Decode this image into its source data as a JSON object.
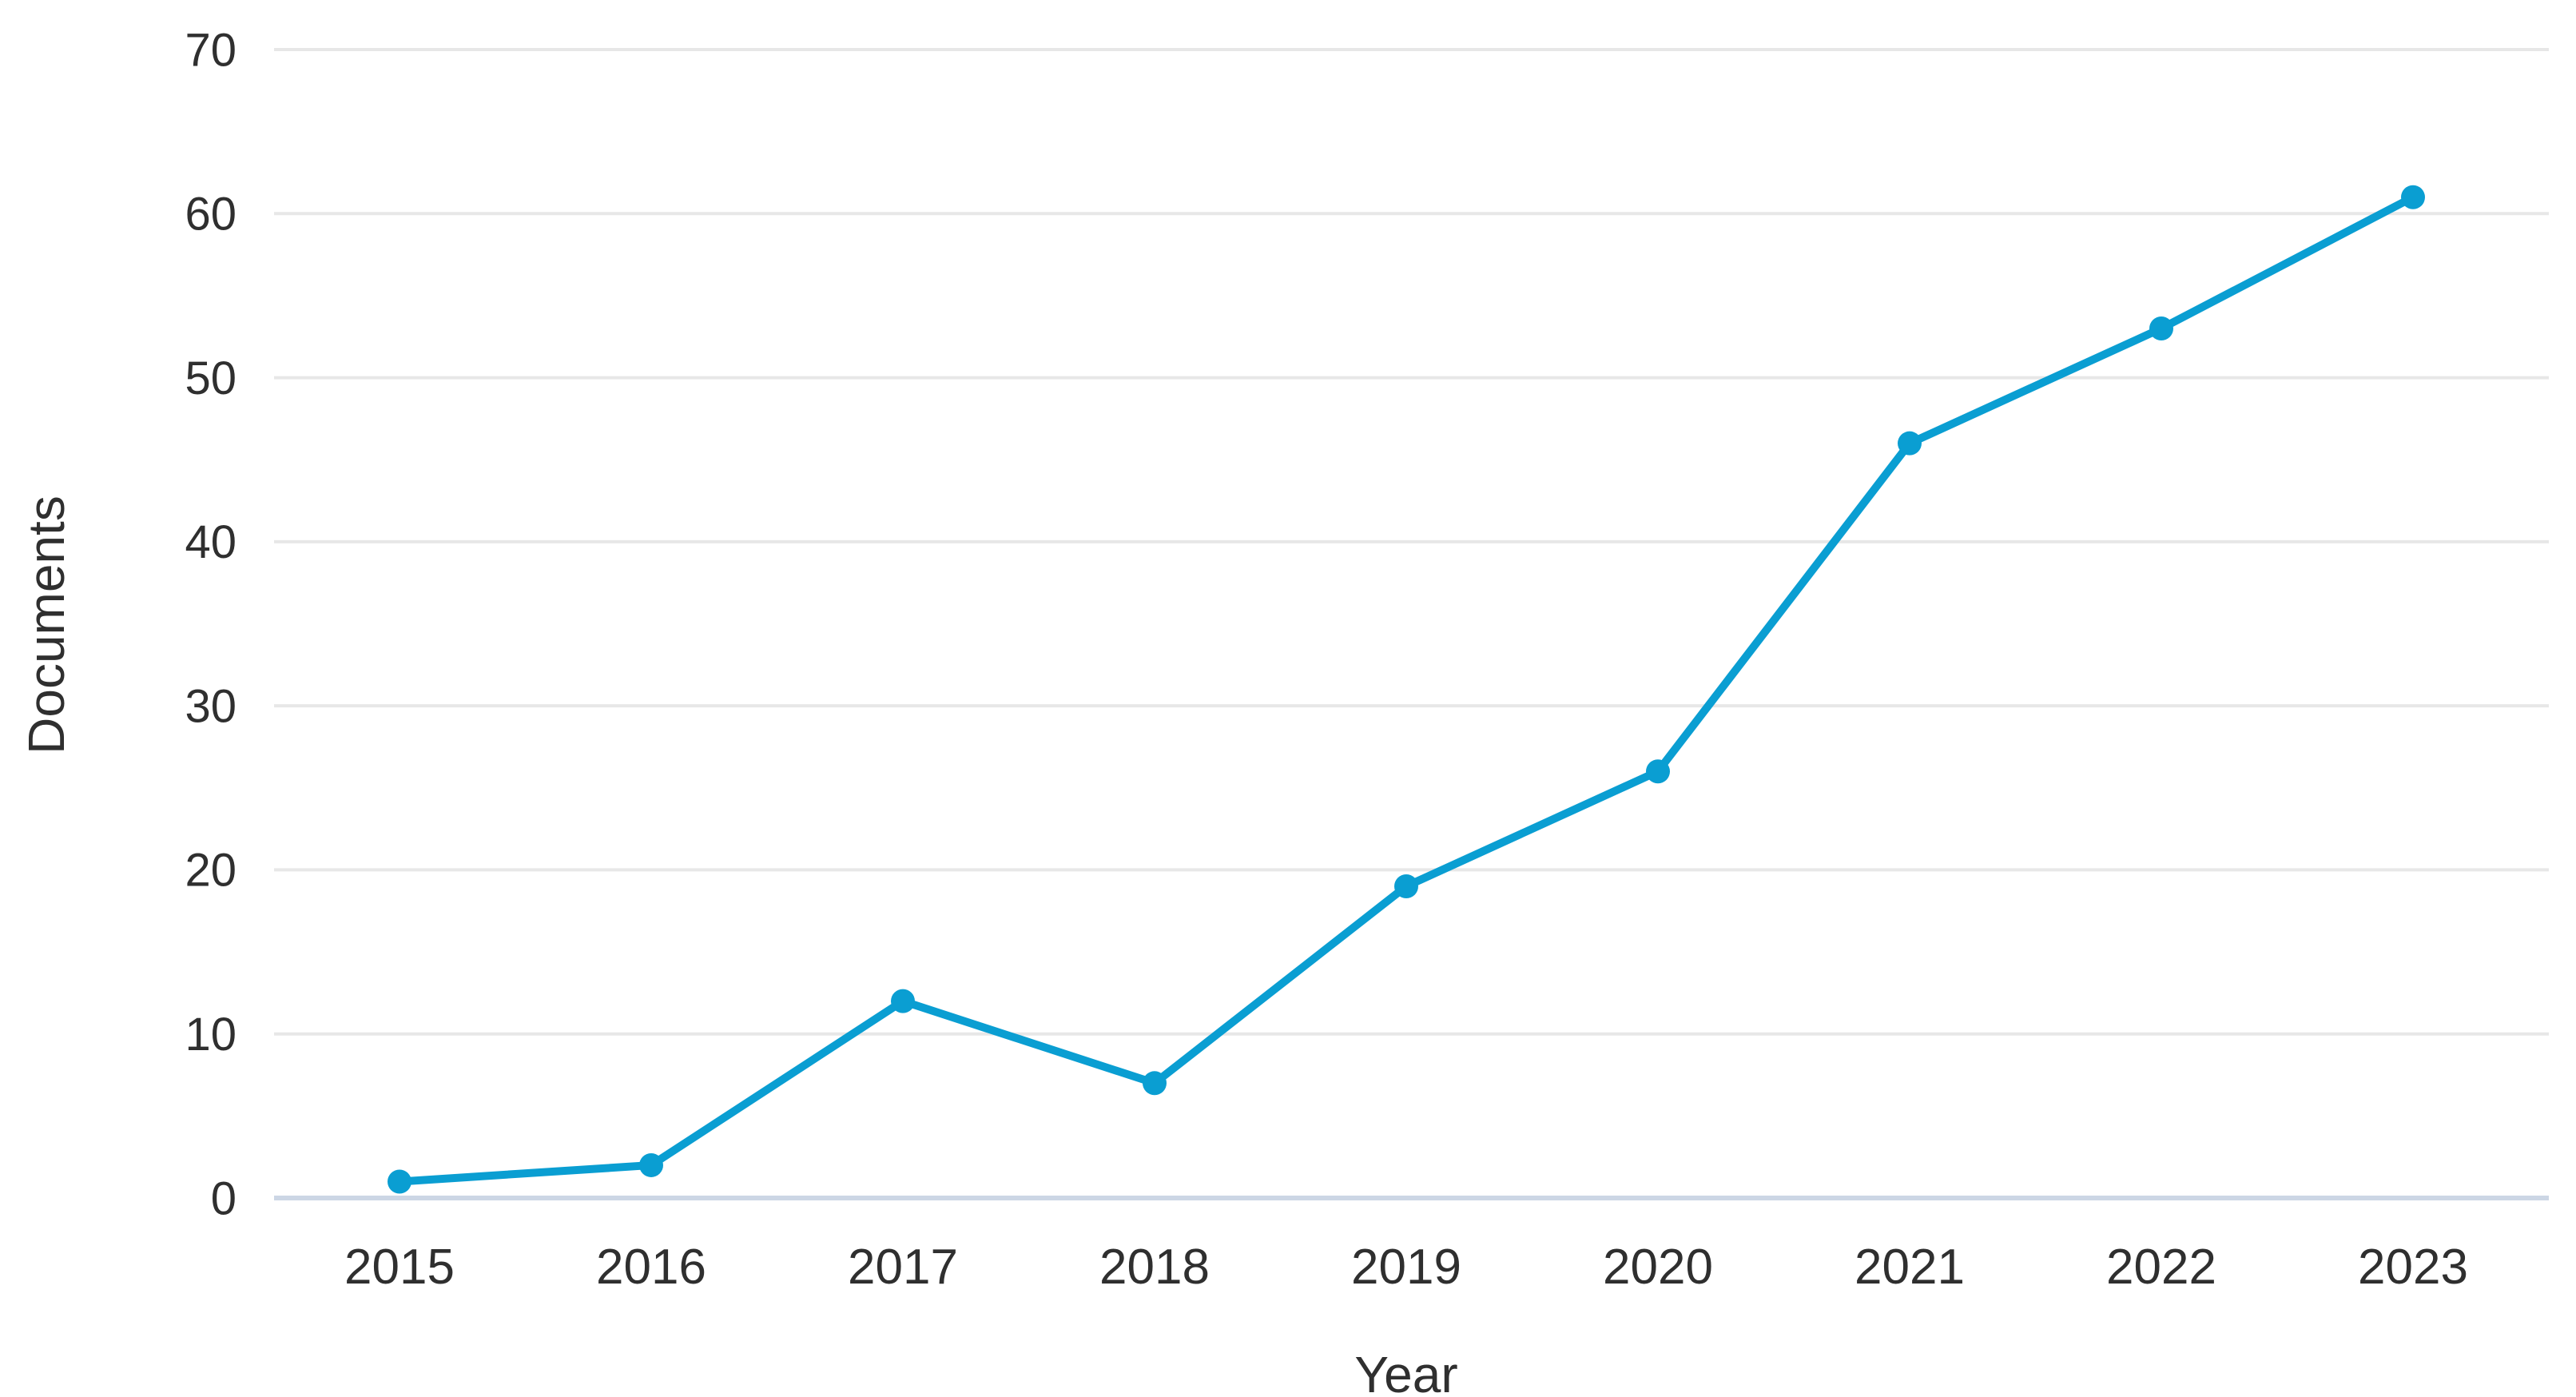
{
  "chart_data": {
    "type": "line",
    "title": "",
    "xlabel": "Year",
    "ylabel": "Documents",
    "x": [
      2015,
      2016,
      2017,
      2018,
      2019,
      2020,
      2021,
      2022,
      2023
    ],
    "series": [
      {
        "name": "Documents",
        "values": [
          1,
          2,
          12,
          7,
          19,
          26,
          46,
          53,
          61
        ],
        "color": "#0a9ed2"
      }
    ],
    "ylim": [
      0,
      70
    ],
    "yticks": [
      0,
      10,
      20,
      30,
      40,
      50,
      60,
      70
    ],
    "grid": true,
    "legend_position": "none",
    "marker": "circle",
    "line_color": "#0a9ed2",
    "grid_color": "#e7e7e7",
    "axis_line_color": "#ccd6e5",
    "text_color": "#2f2f2f",
    "background_color": "#ffffff"
  }
}
